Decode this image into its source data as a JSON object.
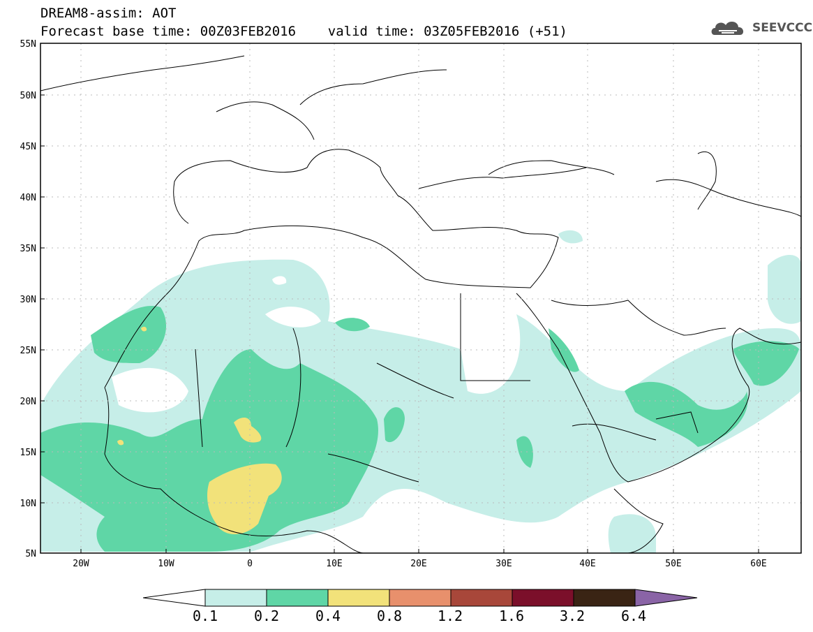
{
  "header": {
    "line1": "DREAM8-assim: AOT",
    "line2": "Forecast base time: 00Z03FEB2016    valid time: 03Z05FEB2016 (+51)"
  },
  "logo": {
    "text": "SEEVCCC"
  },
  "map": {
    "lat_labels": [
      "55N",
      "50N",
      "45N",
      "40N",
      "35N",
      "30N",
      "25N",
      "20N",
      "15N",
      "10N",
      "5N"
    ],
    "lon_labels": [
      "20W",
      "10W",
      "0",
      "10E",
      "20E",
      "30E",
      "40E",
      "50E",
      "60E"
    ]
  },
  "colorbar": {
    "thresholds": [
      "0.1",
      "0.2",
      "0.4",
      "0.8",
      "1.2",
      "1.6",
      "3.2",
      "6.4"
    ],
    "colors": [
      "#ffffff",
      "#c6eee8",
      "#5fd6a6",
      "#f2e27a",
      "#e8906c",
      "#a8473a",
      "#7b0f2a",
      "#3a2414",
      "#8a64a6"
    ]
  }
}
